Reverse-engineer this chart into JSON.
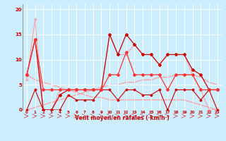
{
  "xlabel": "Vent moyen/en rafales ( km/h )",
  "background_color": "#cceeff",
  "grid_color": "#ffffff",
  "x_hours": [
    0,
    1,
    2,
    3,
    4,
    5,
    6,
    7,
    8,
    9,
    10,
    11,
    12,
    13,
    14,
    15,
    16,
    17,
    18,
    19,
    20,
    21,
    22,
    23
  ],
  "wind_gust": [
    6,
    18,
    0,
    0,
    4,
    4,
    4,
    4,
    4,
    4,
    15,
    11,
    11,
    13,
    11,
    11,
    9,
    11,
    11,
    11,
    7,
    4,
    0,
    0
  ],
  "wind_avg": [
    7,
    14,
    4,
    4,
    4,
    4,
    4,
    4,
    4,
    4,
    7,
    7,
    11.5,
    7,
    7,
    7,
    7,
    4,
    7,
    7,
    7,
    4,
    4,
    4
  ],
  "wind_min": [
    0,
    4,
    0,
    0,
    0,
    3,
    2,
    2,
    2,
    4,
    4,
    2,
    4,
    4,
    3,
    3,
    4,
    0,
    4,
    4,
    4,
    2,
    4,
    0
  ],
  "wind_max": [
    7,
    14,
    0,
    0,
    3,
    4,
    4,
    4,
    4,
    4,
    15,
    11,
    15,
    13,
    11,
    11,
    9,
    11,
    11,
    11,
    8,
    7,
    4,
    4
  ],
  "trend_down": [
    7,
    6,
    5.5,
    5,
    4.5,
    4,
    3.5,
    3,
    2.5,
    2.5,
    2,
    2,
    2,
    2,
    2,
    2,
    2,
    2,
    2,
    2,
    1.5,
    1,
    0.5,
    0
  ],
  "trend_up": [
    0,
    0.5,
    1,
    1.5,
    2,
    2.5,
    3,
    3.5,
    4,
    4.5,
    5,
    5,
    5.5,
    5.5,
    6,
    6,
    6.5,
    6.5,
    7,
    7,
    7,
    6.5,
    5.5,
    5
  ],
  "color_dark_red": "#cc0000",
  "color_light_red": "#ff9999",
  "color_mid_red": "#ff3333",
  "xlim": [
    -0.5,
    23.5
  ],
  "ylim": [
    0,
    21
  ],
  "yticks": [
    0,
    5,
    10,
    15,
    20
  ]
}
